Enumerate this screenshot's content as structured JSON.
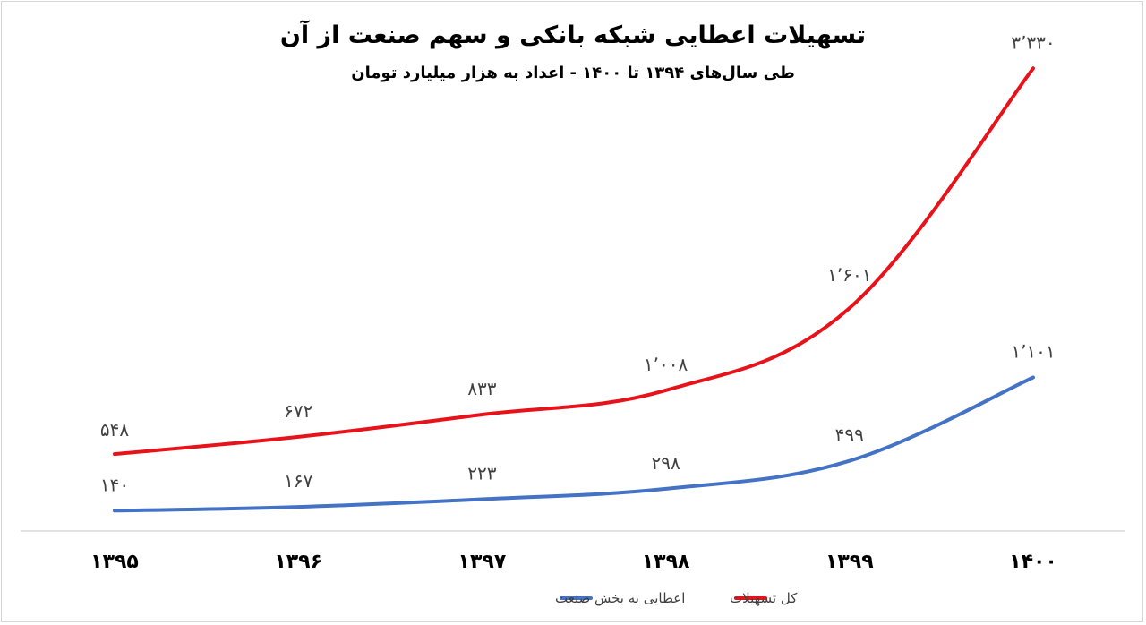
{
  "chart_data": {
    "type": "line",
    "title": "تسهیلات اعطایی شبکه بانکی و سهم صنعت از آن",
    "subtitle": "طی سال‌های ۱۳۹۴ تا ۱۴۰۰ - اعداد به هزار میلیارد تومان",
    "categories": [
      "۱۳۹۵",
      "۱۳۹۶",
      "۱۳۹۷",
      "۱۳۹۸",
      "۱۳۹۹",
      "۱۴۰۰"
    ],
    "series": [
      {
        "name": "کل تسهیلات",
        "color": "#e8121a",
        "values": [
          548,
          672,
          833,
          1008,
          1601,
          3330
        ],
        "labels": [
          "۵۴۸",
          "۶۷۲",
          "۸۳۳",
          "۱٬۰۰۸",
          "۱٬۶۰۱",
          "۳٬۳۳۰"
        ]
      },
      {
        "name": "اعطایی به بخش صنعت",
        "color": "#4472c4",
        "values": [
          140,
          167,
          223,
          298,
          499,
          1101
        ],
        "labels": [
          "۱۴۰",
          "۱۶۷",
          "۲۲۳",
          "۲۹۸",
          "۴۹۹",
          "۱٬۱۰۱"
        ]
      }
    ],
    "ylim": [
      0,
      3500
    ],
    "grid": false,
    "legend_position": "bottom"
  }
}
